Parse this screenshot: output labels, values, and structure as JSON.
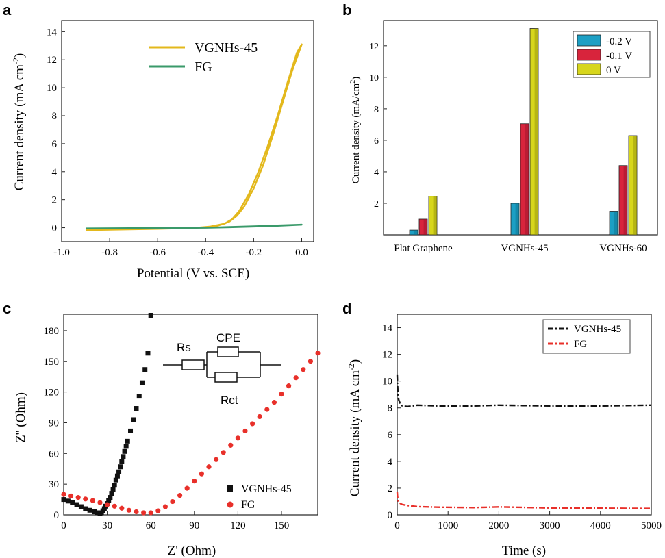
{
  "chart_data": [
    {
      "panel": "a",
      "type": "line",
      "xlabel": "Potential (V vs. SCE)",
      "ylabel": "Current density (mA cm",
      "ylabel_sup": "-2",
      "ylabel_tail": ")",
      "xlim": [
        -1.0,
        0.05
      ],
      "ylim": [
        -1.0,
        14.8
      ],
      "xticks": [
        -1.0,
        -0.8,
        -0.6,
        -0.4,
        -0.2,
        0.0
      ],
      "xtick_labels": [
        "-1.0",
        "-0.8",
        "-0.6",
        "-0.4",
        "-0.2",
        "0.0"
      ],
      "yticks": [
        0,
        2,
        4,
        6,
        8,
        10,
        12,
        14
      ],
      "ytick_labels": [
        "0",
        "2",
        "4",
        "6",
        "8",
        "10",
        "12",
        "14"
      ],
      "legend_position": "top-center",
      "series": [
        {
          "name": "VGNHs-45",
          "color": "#e3b81c",
          "x": [
            -0.9,
            -0.6,
            -0.45,
            -0.38,
            -0.33,
            -0.3,
            -0.27,
            -0.24,
            -0.2,
            -0.16,
            -0.12,
            -0.08,
            -0.04,
            0.0,
            -0.02,
            -0.06,
            -0.1,
            -0.14,
            -0.18,
            -0.22,
            -0.26,
            -0.29,
            -0.32,
            -0.36,
            -0.44,
            -0.6,
            -0.9
          ],
          "y": [
            -0.18,
            -0.08,
            -0.02,
            0.08,
            0.25,
            0.45,
            0.85,
            1.5,
            2.8,
            4.5,
            6.6,
            8.9,
            11.2,
            13.1,
            12.5,
            10.3,
            8.0,
            5.9,
            4.0,
            2.4,
            1.2,
            0.6,
            0.3,
            0.1,
            0.0,
            -0.05,
            -0.12
          ]
        },
        {
          "name": "FG",
          "color": "#3a9a6a",
          "x": [
            -0.9,
            -0.6,
            -0.4,
            -0.3,
            -0.2,
            -0.1,
            0.0,
            -0.1,
            -0.2,
            -0.3,
            -0.4,
            -0.6,
            -0.9
          ],
          "y": [
            -0.05,
            -0.02,
            0.0,
            0.05,
            0.1,
            0.16,
            0.22,
            0.14,
            0.08,
            0.03,
            0.0,
            -0.03,
            -0.06
          ]
        }
      ]
    },
    {
      "panel": "b",
      "type": "bar",
      "ylabel": "Current density (mA/cm",
      "ylabel_sup": "2",
      "ylabel_tail": ")",
      "categories": [
        "Flat Graphene",
        "VGNHs-45",
        "VGNHs-60"
      ],
      "ylim": [
        0,
        13.6
      ],
      "yticks": [
        2,
        4,
        6,
        8,
        10,
        12
      ],
      "ytick_labels": [
        "2",
        "4",
        "6",
        "8",
        "10",
        "12"
      ],
      "legend_position": "top-right",
      "series": [
        {
          "name": "-0.2 V",
          "color": "#1c9fc4",
          "values": [
            0.3,
            2.0,
            1.5
          ]
        },
        {
          "name": "-0.1 V",
          "color": "#d8243c",
          "values": [
            1.0,
            7.05,
            4.4
          ]
        },
        {
          "name": "0 V",
          "color": "#d7d61c",
          "values": [
            2.45,
            13.1,
            6.3
          ]
        }
      ]
    },
    {
      "panel": "c",
      "type": "scatter",
      "xlabel": "Z' (Ohm)",
      "ylabel": "Z'' (Ohm)",
      "xlim": [
        0,
        175
      ],
      "ylim": [
        0,
        196
      ],
      "xticks": [
        0,
        30,
        60,
        90,
        120,
        150
      ],
      "xtick_labels": [
        "0",
        "30",
        "60",
        "90",
        "120",
        "150"
      ],
      "yticks": [
        0,
        30,
        60,
        90,
        120,
        150,
        180
      ],
      "ytick_labels": [
        "0",
        "30",
        "60",
        "90",
        "120",
        "150",
        "180"
      ],
      "legend_position": "bottom-right",
      "inset_labels": {
        "rs": "Rs",
        "cpe": "CPE",
        "rct": "Rct"
      },
      "series": [
        {
          "name": "VGNHs-45",
          "color": "#111111",
          "marker": "square",
          "x": [
            0,
            3,
            6,
            9,
            12,
            15,
            18,
            21,
            23,
            25,
            26,
            27,
            28,
            29,
            30,
            31,
            32,
            33,
            34,
            35,
            36,
            37,
            38,
            39,
            40,
            41,
            42,
            43,
            44,
            46,
            48,
            50,
            52,
            54,
            56,
            58,
            60
          ],
          "y": [
            15,
            13.5,
            12,
            10,
            8,
            6,
            4.5,
            3,
            2,
            1.5,
            2,
            4,
            6,
            8.5,
            11,
            14,
            17,
            21,
            25,
            29,
            34,
            38,
            42,
            47,
            52,
            57,
            62,
            67,
            72,
            82,
            93,
            104,
            116,
            129,
            142,
            158,
            195
          ]
        },
        {
          "name": "FG",
          "color": "#e8302a",
          "marker": "circle",
          "x": [
            0,
            5,
            10,
            15,
            20,
            25,
            30,
            35,
            40,
            45,
            50,
            55,
            60,
            65,
            70,
            75,
            80,
            85,
            90,
            95,
            100,
            105,
            110,
            115,
            120,
            125,
            130,
            135,
            140,
            145,
            150,
            155,
            160,
            165,
            170,
            175
          ],
          "y": [
            20,
            18.5,
            17,
            15.5,
            14,
            12,
            10,
            8.5,
            6.5,
            4.5,
            3,
            2,
            2,
            4,
            8,
            13,
            19,
            26,
            33,
            40,
            47,
            54,
            61,
            68,
            75,
            82,
            89,
            96,
            103,
            110,
            118,
            126,
            134,
            142,
            150,
            158
          ]
        }
      ]
    },
    {
      "panel": "d",
      "type": "line",
      "xlabel": "Time (s)",
      "ylabel": "Current density (mA cm",
      "ylabel_sup": "-2",
      "ylabel_tail": ")",
      "xlim": [
        0,
        5000
      ],
      "ylim": [
        0,
        15
      ],
      "xticks": [
        0,
        1000,
        2000,
        3000,
        4000,
        5000
      ],
      "xtick_labels": [
        "0",
        "1000",
        "2000",
        "3000",
        "4000",
        "5000"
      ],
      "yticks": [
        0,
        2,
        4,
        6,
        8,
        10,
        12,
        14
      ],
      "ytick_labels": [
        "0",
        "2",
        "4",
        "6",
        "8",
        "10",
        "12",
        "14"
      ],
      "legend_position": "top-right",
      "series": [
        {
          "name": "VGNHs-45",
          "color": "#111111",
          "x": [
            0,
            5,
            15,
            30,
            60,
            100,
            200,
            400,
            800,
            1500,
            2000,
            3000,
            4000,
            5000
          ],
          "y": [
            10.5,
            9.8,
            9.0,
            8.6,
            8.3,
            8.15,
            8.1,
            8.2,
            8.15,
            8.15,
            8.2,
            8.15,
            8.15,
            8.2
          ]
        },
        {
          "name": "FG",
          "color": "#e8302a",
          "x": [
            0,
            5,
            15,
            30,
            60,
            100,
            200,
            400,
            800,
            1500,
            2000,
            3000,
            4000,
            5000
          ],
          "y": [
            1.7,
            1.4,
            1.1,
            0.95,
            0.85,
            0.78,
            0.7,
            0.62,
            0.58,
            0.55,
            0.6,
            0.52,
            0.5,
            0.48
          ]
        }
      ]
    }
  ],
  "panel_letters": [
    "a",
    "b",
    "c",
    "d"
  ]
}
